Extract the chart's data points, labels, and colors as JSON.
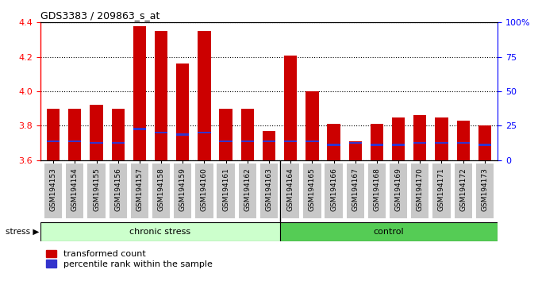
{
  "title": "GDS3383 / 209863_s_at",
  "samples": [
    "GSM194153",
    "GSM194154",
    "GSM194155",
    "GSM194156",
    "GSM194157",
    "GSM194158",
    "GSM194159",
    "GSM194160",
    "GSM194161",
    "GSM194162",
    "GSM194163",
    "GSM194164",
    "GSM194165",
    "GSM194166",
    "GSM194167",
    "GSM194168",
    "GSM194169",
    "GSM194170",
    "GSM194171",
    "GSM194172",
    "GSM194173"
  ],
  "transformed_count": [
    3.9,
    3.9,
    3.92,
    3.9,
    4.38,
    4.35,
    4.16,
    4.35,
    3.9,
    3.9,
    3.77,
    4.21,
    4.0,
    3.81,
    3.71,
    3.81,
    3.85,
    3.86,
    3.85,
    3.83,
    3.8
  ],
  "percentile_rank": [
    3.71,
    3.71,
    3.7,
    3.7,
    3.78,
    3.76,
    3.75,
    3.76,
    3.71,
    3.71,
    3.71,
    3.71,
    3.71,
    3.69,
    3.7,
    3.69,
    3.69,
    3.7,
    3.7,
    3.7,
    3.69
  ],
  "group_chronic_count": 11,
  "group_labels": [
    "chronic stress",
    "control"
  ],
  "ylim_left": [
    3.6,
    4.4
  ],
  "ylim_right": [
    0,
    100
  ],
  "bar_color": "#cc0000",
  "percentile_color": "#3333cc",
  "bg_color_chronic": "#ccffcc",
  "bg_color_control": "#55cc55",
  "stress_label": "stress",
  "legend_red": "transformed count",
  "legend_blue": "percentile rank within the sample",
  "bg_gray": "#c8c8c8",
  "fig_bg": "#ffffff"
}
